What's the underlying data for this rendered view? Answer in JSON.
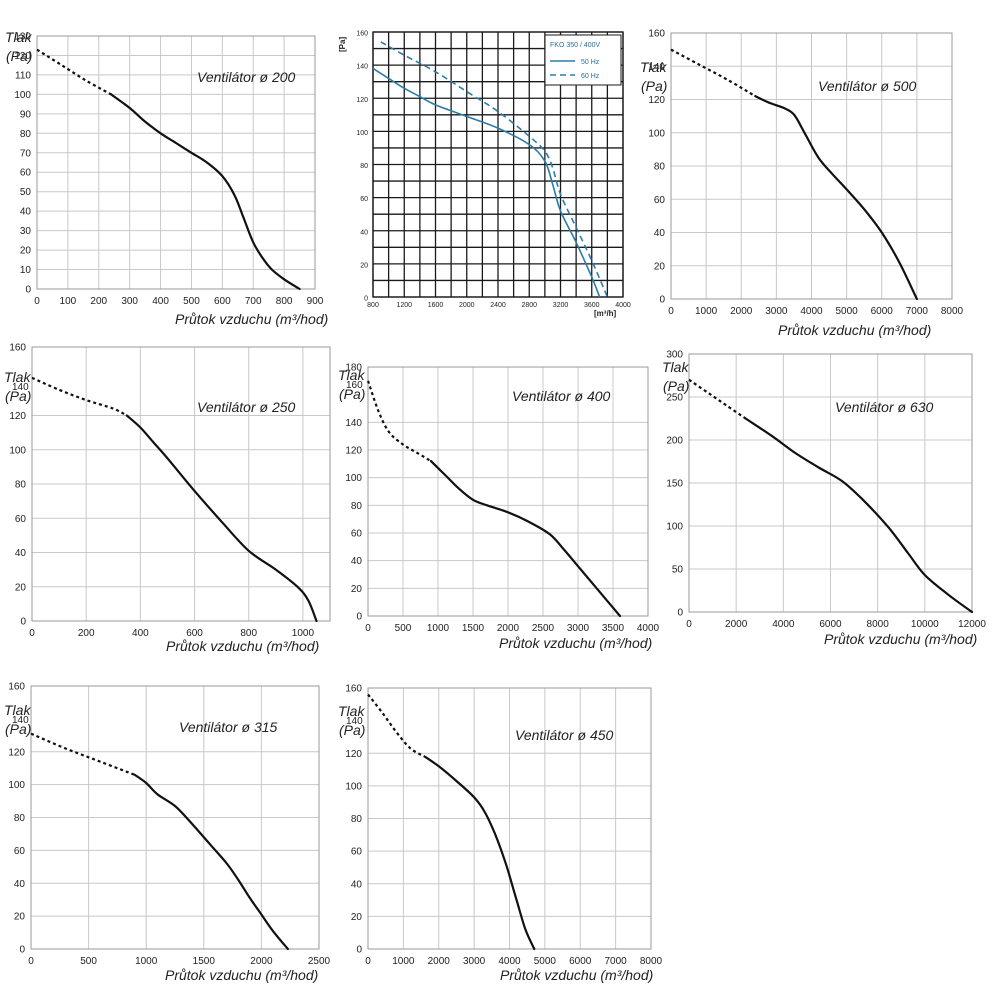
{
  "chart_data": [
    {
      "id": "fan200",
      "type": "line",
      "title": "Ventilátor ø 200",
      "ylabel_line1": "Tlak",
      "ylabel_line2": "(Pa)",
      "xlabel": "Průtok vzduchu (m³/hod)",
      "xlim": [
        0,
        900
      ],
      "ylim": [
        0,
        130
      ],
      "xticks": [
        0,
        100,
        200,
        300,
        400,
        500,
        600,
        700,
        800,
        900
      ],
      "yticks": [
        0,
        10,
        20,
        30,
        40,
        50,
        60,
        70,
        80,
        90,
        100,
        110,
        120,
        130
      ],
      "dotted": {
        "x": [
          0,
          80,
          160,
          240
        ],
        "y": [
          123,
          115,
          107,
          100
        ]
      },
      "solid": {
        "x": [
          240,
          300,
          350,
          400,
          450,
          500,
          550,
          600,
          640,
          670,
          700,
          730,
          760,
          800,
          850
        ],
        "y": [
          100,
          93,
          86,
          80,
          75,
          70,
          65,
          58,
          48,
          36,
          24,
          16,
          10,
          5,
          0
        ]
      }
    },
    {
      "id": "fko350",
      "type": "line",
      "style": "blue",
      "title": "",
      "legend_title": "FKO 350 / 400V",
      "ylabel_line1": "[Pa]",
      "ylabel_line2": "",
      "xlabel": "[m³/h]",
      "xlim": [
        800,
        4000
      ],
      "ylim": [
        0,
        160
      ],
      "xticks": [
        800,
        1200,
        1600,
        2000,
        2400,
        2800,
        3200,
        3600,
        4000
      ],
      "yticks": [
        0,
        20,
        40,
        60,
        80,
        100,
        120,
        140,
        160
      ],
      "series": [
        {
          "name": "50 Hz",
          "dash": false,
          "x": [
            800,
            1000,
            1200,
            1400,
            1600,
            2000,
            2400,
            2800,
            3000,
            3100,
            3200,
            3400,
            3600,
            3700
          ],
          "y": [
            138,
            132,
            126,
            121,
            116,
            109,
            102,
            92,
            82,
            68,
            52,
            33,
            12,
            0
          ]
        },
        {
          "name": "60 Hz",
          "dash": true,
          "x": [
            900,
            1200,
            1600,
            2000,
            2400,
            2800,
            3000,
            3100,
            3200,
            3400,
            3600,
            3800
          ],
          "y": [
            154,
            146,
            136,
            124,
            112,
            97,
            88,
            78,
            62,
            42,
            22,
            0
          ]
        }
      ]
    },
    {
      "id": "fan500",
      "type": "line",
      "title": "Ventilátor ø 500",
      "ylabel_line1": "Tlak",
      "ylabel_line2": "(Pa)",
      "xlabel": "Průtok vzduchu (m³/hod)",
      "xlim": [
        0,
        8000
      ],
      "ylim": [
        0,
        160
      ],
      "xticks": [
        0,
        1000,
        2000,
        3000,
        4000,
        5000,
        6000,
        7000,
        8000
      ],
      "yticks": [
        0,
        20,
        40,
        60,
        80,
        100,
        120,
        140,
        160
      ],
      "dotted": {
        "x": [
          0,
          800,
          1600,
          2400
        ],
        "y": [
          150,
          141,
          132,
          122
        ]
      },
      "solid": {
        "x": [
          2400,
          2800,
          3200,
          3500,
          3800,
          4200,
          4600,
          5000,
          5500,
          6000,
          6500,
          7000
        ],
        "y": [
          122,
          118,
          115,
          111,
          100,
          85,
          75,
          66,
          54,
          40,
          22,
          0
        ]
      }
    },
    {
      "id": "fan250",
      "type": "line",
      "title": "Ventilátor ø 250",
      "ylabel_line1": "Tlak",
      "ylabel_line2": "(Pa)",
      "y_extra_tick": "140",
      "xlabel": "Průtok vzduchu (m³/hod)",
      "xlim": [
        0,
        1100
      ],
      "ylim": [
        0,
        160
      ],
      "xticks": [
        0,
        200,
        400,
        600,
        800,
        1000
      ],
      "yticks": [
        0,
        20,
        40,
        60,
        80,
        100,
        120,
        160
      ],
      "dotted": {
        "x": [
          0,
          100,
          200,
          300,
          350
        ],
        "y": [
          142,
          135,
          129,
          124,
          120
        ]
      },
      "solid": {
        "x": [
          350,
          400,
          450,
          500,
          600,
          700,
          800,
          900,
          980,
          1020,
          1050
        ],
        "y": [
          120,
          113,
          104,
          95,
          76,
          58,
          41,
          30,
          20,
          12,
          0
        ]
      }
    },
    {
      "id": "fan400",
      "type": "line",
      "title": "Ventilátor ø 400",
      "ylabel_line1": "Tlak",
      "ylabel_line2": "(Pa)",
      "y_extra_tick": "160",
      "xlabel": "Průtok vzduchu (m³/hod)",
      "xlim": [
        0,
        4000
      ],
      "ylim": [
        0,
        180
      ],
      "xticks": [
        0,
        500,
        1000,
        1500,
        2000,
        2500,
        3000,
        3500,
        4000
      ],
      "yticks": [
        0,
        20,
        40,
        60,
        80,
        100,
        120,
        140,
        180
      ],
      "dotted": {
        "x": [
          0,
          150,
          300,
          500,
          700,
          900
        ],
        "y": [
          170,
          148,
          133,
          124,
          118,
          112
        ]
      },
      "solid": {
        "x": [
          900,
          1100,
          1300,
          1500,
          1700,
          2000,
          2300,
          2600,
          2800,
          3000,
          3200,
          3400,
          3600
        ],
        "y": [
          112,
          102,
          92,
          84,
          80,
          75,
          68,
          59,
          48,
          36,
          24,
          12,
          0
        ]
      }
    },
    {
      "id": "fan630",
      "type": "line",
      "title": "Ventilátor ø 630",
      "ylabel_line1": "Tlak",
      "ylabel_line2": "(Pa)",
      "xlabel": "Průtok vzduchu (m³/hod)",
      "xlim": [
        0,
        12000
      ],
      "ylim": [
        0,
        300
      ],
      "xticks": [
        0,
        2000,
        4000,
        6000,
        8000,
        10000,
        12000
      ],
      "yticks": [
        0,
        50,
        100,
        150,
        200,
        250,
        300
      ],
      "dotted": {
        "x": [
          0,
          800,
          1600,
          2400
        ],
        "y": [
          270,
          255,
          240,
          225
        ]
      },
      "solid": {
        "x": [
          2400,
          3500,
          4500,
          5500,
          6500,
          7500,
          8500,
          9300,
          10000,
          11000,
          12000
        ],
        "y": [
          225,
          205,
          185,
          168,
          152,
          127,
          97,
          68,
          43,
          20,
          0
        ]
      }
    },
    {
      "id": "fan315",
      "type": "line",
      "title": "Ventilátor ø 315",
      "ylabel_line1": "Tlak",
      "ylabel_line2": "(Pa)",
      "y_extra_tick": "140",
      "xlabel": "Průtok vzduchu (m³/hod)",
      "xlim": [
        0,
        2500
      ],
      "ylim": [
        0,
        160
      ],
      "xticks": [
        0,
        500,
        1000,
        1500,
        2000,
        2500
      ],
      "yticks": [
        0,
        20,
        40,
        60,
        80,
        100,
        120,
        160
      ],
      "dotted": {
        "x": [
          0,
          300,
          600,
          900
        ],
        "y": [
          131,
          122,
          114,
          106
        ]
      },
      "solid": {
        "x": [
          900,
          1000,
          1100,
          1250,
          1400,
          1550,
          1700,
          1800,
          1900,
          2000,
          2100,
          2230
        ],
        "y": [
          106,
          101,
          94,
          87,
          76,
          64,
          52,
          42,
          31,
          21,
          11,
          0
        ]
      }
    },
    {
      "id": "fan450",
      "type": "line",
      "title": "Ventilátor ø 450",
      "ylabel_line1": "Tlak",
      "ylabel_line2": "(Pa)",
      "y_extra_tick": "140",
      "xlabel": "Průtok vzduchu (m³/hod)",
      "xlim": [
        0,
        8000
      ],
      "ylim": [
        0,
        160
      ],
      "xticks": [
        0,
        1000,
        2000,
        3000,
        4000,
        5000,
        6000,
        7000,
        8000
      ],
      "yticks": [
        0,
        20,
        40,
        60,
        80,
        100,
        120,
        160
      ],
      "dotted": {
        "x": [
          0,
          400,
          800,
          1200,
          1600
        ],
        "y": [
          156,
          145,
          133,
          123,
          118
        ]
      },
      "solid": {
        "x": [
          1600,
          2000,
          2500,
          3000,
          3300,
          3600,
          3900,
          4200,
          4450,
          4700
        ],
        "y": [
          118,
          112,
          103,
          93,
          84,
          70,
          52,
          30,
          12,
          0
        ]
      }
    }
  ]
}
